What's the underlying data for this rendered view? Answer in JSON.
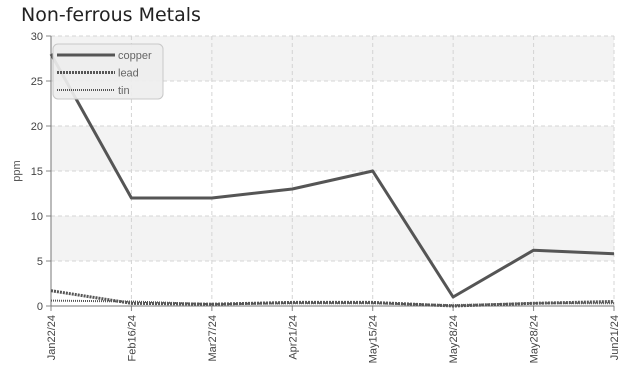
{
  "chart_data": {
    "type": "line",
    "title": "Non-ferrous Metals",
    "ylabel": "ppm",
    "xlabel": "",
    "ylim": [
      0,
      30
    ],
    "yticks": [
      "0",
      "5",
      "10",
      "15",
      "20",
      "25",
      "30"
    ],
    "categories": [
      "Jan22/24",
      "Feb16/24",
      "Mar27/24",
      "Apr21/24",
      "May15/24",
      "May28/24",
      "May28/24",
      "Jun21/24"
    ],
    "grid": true,
    "legend_position": "top-left",
    "series": [
      {
        "name": "copper",
        "values": [
          28,
          12,
          12,
          13,
          15,
          1,
          6.2,
          5.8
        ],
        "color": "#555555",
        "style": "solid"
      },
      {
        "name": "lead",
        "values": [
          1.7,
          0.3,
          0.2,
          0.4,
          0.4,
          0.0,
          0.3,
          0.5
        ],
        "color": "#555555",
        "style": "dashed"
      },
      {
        "name": "tin",
        "values": [
          0.6,
          0.5,
          0.2,
          0.3,
          0.3,
          0.1,
          0.3,
          0.3
        ],
        "color": "#555555",
        "style": "dotted"
      }
    ]
  }
}
